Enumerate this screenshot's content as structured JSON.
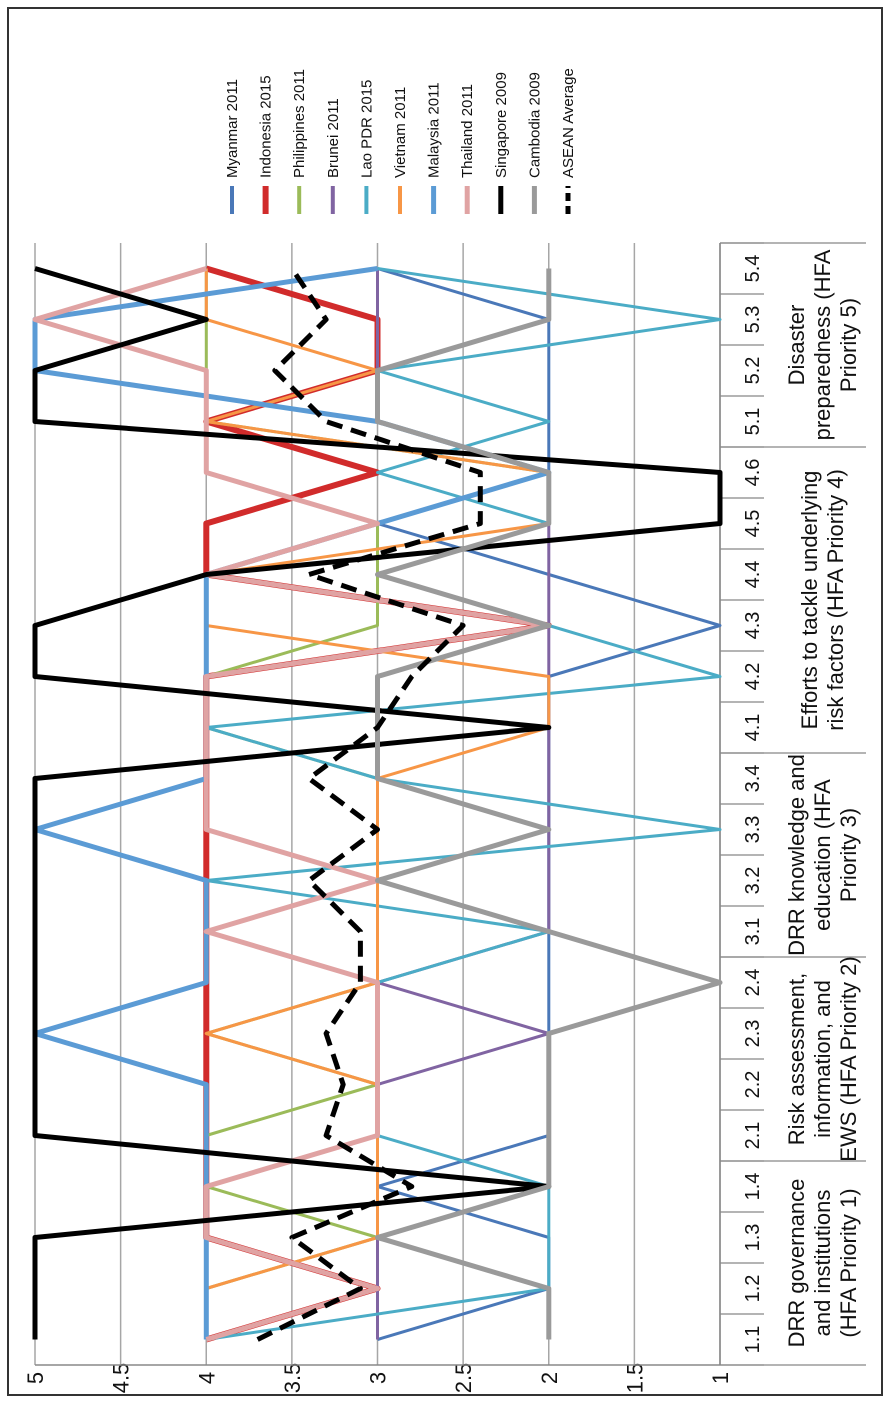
{
  "chart_data": {
    "type": "line",
    "orientation": "rotated-90",
    "title": "",
    "xlabel": "",
    "ylabel": "",
    "ylim": [
      1,
      5
    ],
    "y_ticks": [
      "1",
      "1.5",
      "2",
      "2.5",
      "3",
      "3.5",
      "4",
      "4.5",
      "5"
    ],
    "grid": true,
    "legend_position": "right",
    "categories": [
      "1.1",
      "1.2",
      "1.3",
      "1.4",
      "2.1",
      "2.2",
      "2.3",
      "2.4",
      "3.1",
      "3.2",
      "3.3",
      "3.4",
      "4.1",
      "4.2",
      "4.3",
      "4.4",
      "4.5",
      "4.6",
      "5.1",
      "5.2",
      "5.3",
      "5.4"
    ],
    "groups": [
      {
        "label_lines": [
          "DRR governance",
          "and institutions",
          "(HFA Priority 1)"
        ],
        "categories": [
          "1.1",
          "1.2",
          "1.3",
          "1.4"
        ]
      },
      {
        "label_lines": [
          "Risk assessment,",
          "information, and",
          "EWS (HFA Priority 2)"
        ],
        "categories": [
          "2.1",
          "2.2",
          "2.3",
          "2.4"
        ]
      },
      {
        "label_lines": [
          "DRR knowledge and",
          "education (HFA",
          "Priority 3)"
        ],
        "categories": [
          "3.1",
          "3.2",
          "3.3",
          "3.4"
        ]
      },
      {
        "label_lines": [
          "Efforts to tackle underlying",
          "risk factors (HFA Priority 4)"
        ],
        "categories": [
          "4.1",
          "4.2",
          "4.3",
          "4.4",
          "4.5",
          "4.6"
        ]
      },
      {
        "label_lines": [
          "Disaster",
          "preparedness (HFA",
          "Priority 5)"
        ],
        "categories": [
          "5.1",
          "5.2",
          "5.3",
          "5.4"
        ]
      }
    ],
    "series": [
      {
        "name": "Myanmar 2011",
        "color": "#4a78b8",
        "width": 3,
        "dash": false,
        "values": [
          3,
          2,
          2,
          3,
          2,
          2,
          2,
          2,
          2,
          2,
          2,
          2,
          2,
          2,
          1,
          2,
          3,
          2,
          2,
          2,
          2,
          3
        ]
      },
      {
        "name": "Indonesia 2015",
        "color": "#d12b2b",
        "width": 6,
        "dash": false,
        "values": [
          4,
          3,
          4,
          4,
          4,
          4,
          4,
          4,
          4,
          4,
          4,
          4,
          4,
          4,
          2,
          4,
          4,
          3,
          4,
          3,
          3,
          4
        ]
      },
      {
        "name": "Philippines 2011",
        "color": "#9bbb59",
        "width": 3,
        "dash": false,
        "values": [
          4,
          4,
          3,
          4,
          4,
          3,
          4,
          3,
          4,
          3,
          3,
          3,
          4,
          4,
          3,
          3,
          3,
          2,
          4,
          4,
          4,
          4
        ]
      },
      {
        "name": "Brunei 2011",
        "color": "#8064a2",
        "width": 3,
        "dash": false,
        "values": [
          3,
          3,
          3,
          3,
          3,
          3,
          2,
          3,
          2,
          2,
          2,
          2,
          2,
          2,
          2,
          2,
          2,
          2,
          3,
          3,
          3,
          3
        ]
      },
      {
        "name": "Lao PDR 2015",
        "color": "#4bacc6",
        "width": 3,
        "dash": false,
        "values": [
          4,
          2,
          2,
          2,
          3,
          3,
          3,
          3,
          2,
          4,
          1,
          3,
          4,
          1,
          2,
          3,
          2,
          3,
          2,
          3,
          1,
          3
        ]
      },
      {
        "name": "Vietnam 2011",
        "color": "#f79646",
        "width": 3,
        "dash": false,
        "values": [
          4,
          4,
          3,
          3,
          3,
          3,
          4,
          3,
          3,
          3,
          3,
          3,
          2,
          2,
          4,
          4,
          2,
          2,
          4,
          3,
          4,
          4
        ]
      },
      {
        "name": "Malaysia 2011",
        "color": "#5b9bd5",
        "width": 5,
        "dash": false,
        "values": [
          4,
          4,
          4,
          4,
          4,
          4,
          5,
          4,
          4,
          4,
          5,
          4,
          4,
          4,
          4,
          4,
          3,
          2,
          3,
          5,
          5,
          3
        ]
      },
      {
        "name": "Thailand 2011",
        "color": "#e0a3a3",
        "width": 5,
        "dash": false,
        "values": [
          4,
          3,
          4,
          4,
          3,
          3,
          3,
          3,
          4,
          3,
          4,
          4,
          4,
          4,
          2,
          4,
          3,
          4,
          4,
          4,
          5,
          4
        ]
      },
      {
        "name": "Singapore 2009",
        "color": "#000000",
        "width": 5,
        "dash": false,
        "values": [
          5,
          5,
          5,
          2,
          5,
          5,
          5,
          5,
          5,
          5,
          5,
          5,
          2,
          5,
          5,
          4,
          1,
          1,
          5,
          5,
          4,
          5
        ]
      },
      {
        "name": "Cambodia 2009",
        "color": "#9a9a9a",
        "width": 5,
        "dash": false,
        "values": [
          2,
          2,
          3,
          2,
          2,
          2,
          2,
          1,
          2,
          3,
          2,
          3,
          3,
          3,
          2,
          3,
          2,
          2,
          3,
          3,
          2,
          2
        ]
      },
      {
        "name": "ASEAN Average",
        "color": "#000000",
        "width": 5,
        "dash": true,
        "values": [
          3.7,
          3.1,
          3.5,
          2.8,
          3.3,
          3.2,
          3.3,
          3.1,
          3.1,
          3.4,
          3.0,
          3.4,
          3.0,
          2.8,
          2.5,
          3.4,
          2.4,
          2.4,
          3.3,
          3.6,
          3.3,
          3.5
        ]
      }
    ]
  }
}
